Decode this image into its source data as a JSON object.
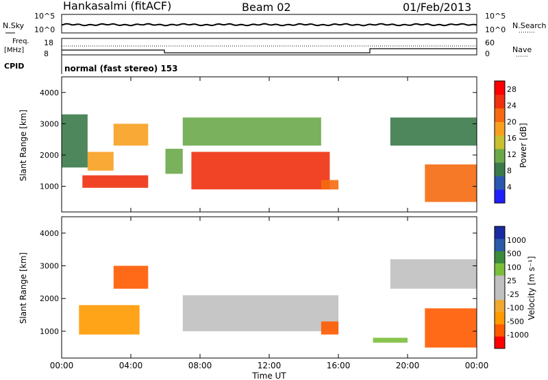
{
  "header": {
    "title": "Hankasalmi (fitACF)",
    "beam": "Beam 02",
    "date": "01/Feb/2013"
  },
  "noise_panel": {
    "left_label": "N.Sky",
    "right_label": "N.Search",
    "y_ticks": [
      "10^5",
      "10^0"
    ]
  },
  "freq_panel": {
    "left_label_1": "Freq.",
    "left_label_2": "[MHz]",
    "left_ticks": [
      "18",
      "8"
    ],
    "right_label": "Nave",
    "right_ticks": [
      "60",
      "0"
    ]
  },
  "cpid_panel": {
    "label": "CPID",
    "text": "normal (fast stereo) 153"
  },
  "colors": {
    "power": [
      "#2020ff",
      "#2a58b0",
      "#3b7a4a",
      "#6aa84a",
      "#c8c030",
      "#f7a020",
      "#f56a10",
      "#f03010",
      "#ff0000"
    ],
    "velocity": [
      "#ff0000",
      "#ff5a00",
      "#ff9a00",
      "#f0a830",
      "#c0c0c0",
      "#c0c0c0",
      "#7cbe3c",
      "#3c8a3c",
      "#2a5aa8",
      "#1a2aa0"
    ]
  },
  "chart_data": [
    {
      "type": "heatmap",
      "name": "power",
      "ylabel": "Slant Range [km]",
      "y_ticks": [
        "4000",
        "3000",
        "2000",
        "1000"
      ],
      "ylim": [
        180,
        4500
      ],
      "x_ticks": [
        "00:00",
        "04:00",
        "08:00",
        "12:00",
        "16:00",
        "20:00",
        "00:00"
      ],
      "colorbar": {
        "label": "Power [dB]",
        "ticks": [
          "28",
          "24",
          "20",
          "16",
          "12",
          "8",
          "4"
        ],
        "range": [
          0,
          30
        ]
      },
      "regions": [
        {
          "x0": 1.2,
          "x1": 5.0,
          "y0": 950,
          "y1": 1350,
          "level": 7
        },
        {
          "x0": 1.5,
          "x1": 3.0,
          "y0": 1500,
          "y1": 2100,
          "level": 5
        },
        {
          "x0": 3.0,
          "x1": 5.0,
          "y0": 2300,
          "y1": 3000,
          "level": 5
        },
        {
          "x0": 6.0,
          "x1": 7.0,
          "y0": 1400,
          "y1": 2200,
          "level": 3
        },
        {
          "x0": 7.5,
          "x1": 15.5,
          "y0": 900,
          "y1": 2100,
          "level": 7
        },
        {
          "x0": 7.0,
          "x1": 15.0,
          "y0": 2300,
          "y1": 3200,
          "level": 3
        },
        {
          "x0": 15.0,
          "x1": 16.0,
          "y0": 900,
          "y1": 1200,
          "level": 6
        },
        {
          "x0": 0.0,
          "x1": 1.5,
          "y0": 1600,
          "y1": 3300,
          "level": 2
        },
        {
          "x0": 21.0,
          "x1": 24.0,
          "y0": 500,
          "y1": 1700,
          "level": 6
        },
        {
          "x0": 19.0,
          "x1": 24.0,
          "y0": 2300,
          "y1": 3200,
          "level": 2
        }
      ]
    },
    {
      "type": "heatmap",
      "name": "velocity",
      "ylabel": "Slant Range [km]",
      "y_ticks": [
        "4000",
        "3000",
        "2000",
        "1000"
      ],
      "ylim": [
        180,
        4500
      ],
      "x_ticks": [
        "00:00",
        "04:00",
        "08:00",
        "12:00",
        "16:00",
        "20:00",
        "00:00"
      ],
      "xlabel": "Time UT",
      "colorbar": {
        "label": "Velocity [m s⁻¹]",
        "ticks": [
          "1000",
          "500",
          "100",
          "25",
          "-25",
          "-100",
          "-500",
          "-1000"
        ],
        "range": [
          -1000,
          1000
        ]
      },
      "regions": [
        {
          "x0": 1.0,
          "x1": 4.5,
          "y0": 900,
          "y1": 1800,
          "level": 2
        },
        {
          "x0": 3.0,
          "x1": 5.0,
          "y0": 2300,
          "y1": 3000,
          "level": 1
        },
        {
          "x0": 7.0,
          "x1": 16.0,
          "y0": 1000,
          "y1": 2100,
          "level": 4
        },
        {
          "x0": 15.0,
          "x1": 16.0,
          "y0": 900,
          "y1": 1300,
          "level": 1
        },
        {
          "x0": 18.0,
          "x1": 20.0,
          "y0": 650,
          "y1": 800,
          "level": 6
        },
        {
          "x0": 21.0,
          "x1": 24.0,
          "y0": 500,
          "y1": 1700,
          "level": 1
        },
        {
          "x0": 19.0,
          "x1": 24.0,
          "y0": 2300,
          "y1": 3200,
          "level": 4
        }
      ]
    }
  ]
}
